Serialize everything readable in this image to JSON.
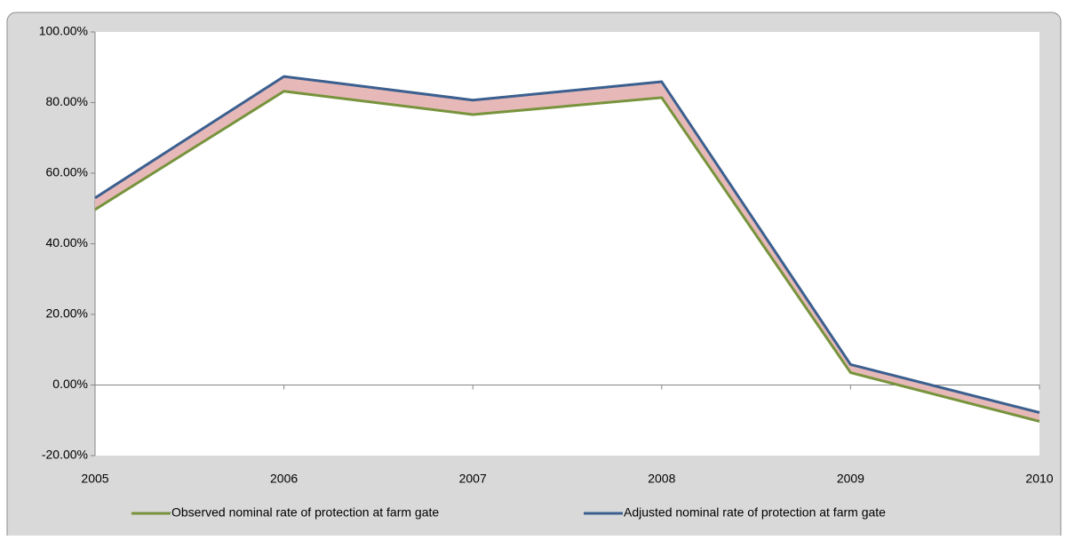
{
  "chart_data": {
    "type": "line",
    "categories": [
      "2005",
      "2006",
      "2007",
      "2008",
      "2009",
      "2010"
    ],
    "series": [
      {
        "name": "Observed nominal rate of protection at farm gate",
        "color": "#77933c",
        "values": [
          49.7,
          83.2,
          76.6,
          81.4,
          3.5,
          -10.3
        ]
      },
      {
        "name": "Adjusted nominal rate of protection at farm gate",
        "color": "#3b5f8f",
        "values": [
          53.0,
          87.4,
          80.7,
          85.9,
          5.8,
          -7.8
        ]
      }
    ],
    "fill_between_color": "#e6b9b8",
    "ylim": [
      -20,
      100
    ],
    "yticks": [
      {
        "value": -20,
        "label": "-20.00%"
      },
      {
        "value": 0,
        "label": "0.00%"
      },
      {
        "value": 20,
        "label": "20.00%"
      },
      {
        "value": 40,
        "label": "40.00%"
      },
      {
        "value": 60,
        "label": "60.00%"
      },
      {
        "value": 80,
        "label": "80.00%"
      },
      {
        "value": 100,
        "label": "100.00%"
      }
    ],
    "legend": "bottom"
  }
}
